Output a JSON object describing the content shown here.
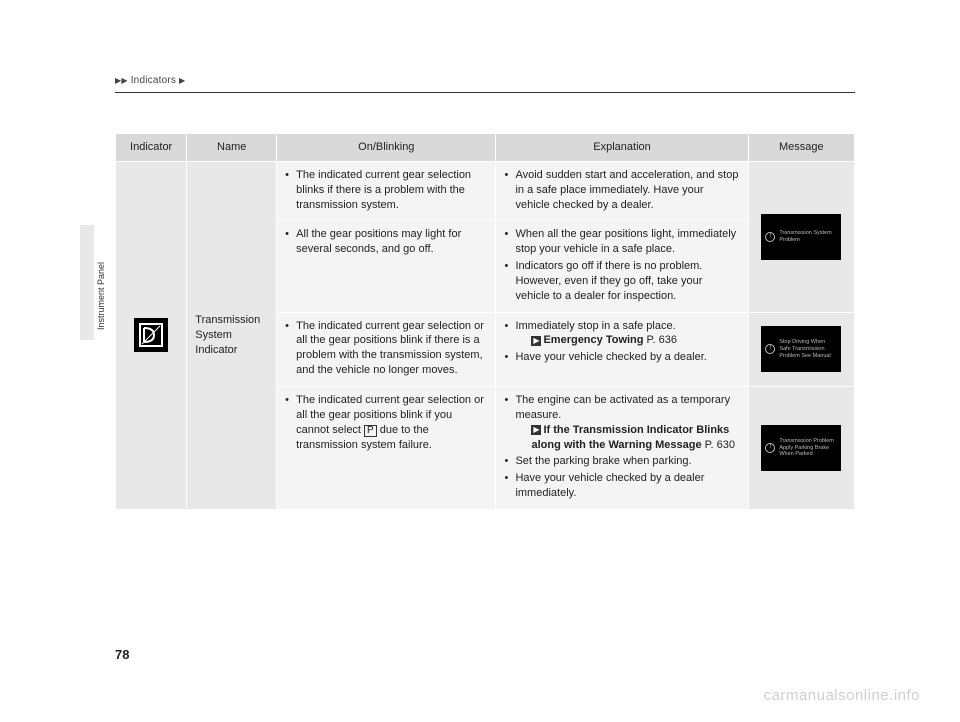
{
  "breadcrumb": {
    "tri1": "▶",
    "tri2": "▶",
    "label": "Indicators",
    "tri3": "▶"
  },
  "side_label": "Instrument Panel",
  "page_number": "78",
  "watermark": "carmanualsonline.info",
  "headers": {
    "indicator": "Indicator",
    "name": "Name",
    "on_blinking": "On/Blinking",
    "explanation": "Explanation",
    "message": "Message"
  },
  "rowspan_name": "Transmission System Indicator",
  "rows": [
    {
      "on": [
        "The indicated current gear selection blinks if there is a problem with the transmission system."
      ],
      "exp": [
        "Avoid sudden start and acceleration, and stop in a safe place immediately. Have your vehicle checked by a dealer."
      ],
      "msg_text": "Transmission System Problem",
      "msg_rowspan": true
    },
    {
      "on": [
        "All the gear positions may light for several seconds, and go off."
      ],
      "exp": [
        "When all the gear positions light, immediately stop your vehicle in a safe place.",
        "Indicators go off if there is no problem. However, even if they go off, take your vehicle to a dealer for inspection."
      ]
    },
    {
      "on": [
        "The indicated current gear selection or all the gear positions blink if there is a problem with the transmission system, and the vehicle no longer moves."
      ],
      "exp_plain": [
        {
          "type": "bullet",
          "text": "Immediately stop in a safe place."
        },
        {
          "type": "ref",
          "bold": "Emergency Towing",
          "page": "P. 636"
        },
        {
          "type": "bullet",
          "text": "Have your vehicle checked by a dealer."
        }
      ],
      "msg_text": "Stop Driving When Safe Transmission Problem See Manual"
    },
    {
      "on_pbox": {
        "before": "The indicated current gear selection or all the gear positions blink if you cannot select ",
        "box": "P",
        "after": " due to the transmission system failure."
      },
      "exp_plain": [
        {
          "type": "bullet",
          "text": "The engine can be activated as a temporary measure."
        },
        {
          "type": "ref",
          "bold": "If the Transmission Indicator Blinks along with the Warning Message",
          "page": "P. 630"
        },
        {
          "type": "bullet",
          "text": "Set the parking brake when parking."
        },
        {
          "type": "bullet",
          "text": "Have your vehicle checked by a dealer immediately."
        }
      ],
      "msg_text": "Transmission Problem Apply Parking Brake When Parked"
    }
  ]
}
